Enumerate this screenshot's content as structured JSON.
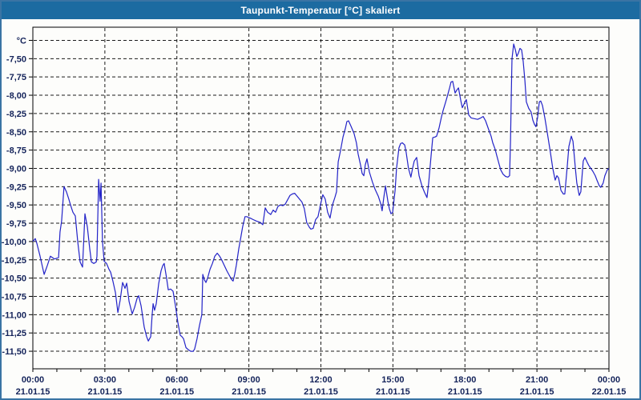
{
  "window": {
    "title": "Taupunkt-Temperatur [°C] skaliert"
  },
  "colors": {
    "titlebar_bg": "#1c6ba1",
    "titlebar_text": "#ffffff",
    "frame_border": "#3a74a4",
    "background": "#fdfdfb",
    "grid": "#1b1b1b",
    "plot_border": "#000000",
    "axis_label": "#14235a",
    "line": "#2323c8"
  },
  "chart_data": {
    "type": "line",
    "title": "Taupunkt-Temperatur [°C] skaliert",
    "grid": "dashed",
    "legend_position": "none",
    "x_axis": {
      "hours_range": [
        0,
        24
      ],
      "major_tick_interval_hours": 3,
      "minor_tick_interval_hours": 1,
      "ticks": [
        {
          "time": "00:00",
          "date": "21.01.15"
        },
        {
          "time": "03:00",
          "date": "21.01.15"
        },
        {
          "time": "06:00",
          "date": "21.01.15"
        },
        {
          "time": "09:00",
          "date": "21.01.15"
        },
        {
          "time": "12:00",
          "date": "21.01.15"
        },
        {
          "time": "15:00",
          "date": "21.01.15"
        },
        {
          "time": "18:00",
          "date": "21.01.15"
        },
        {
          "time": "21:00",
          "date": "21.01.15"
        },
        {
          "time": "00:00",
          "date": "22.01.15"
        }
      ]
    },
    "y_axis": {
      "unit": "°C",
      "range_top": -7.07,
      "range_bottom": -11.74,
      "gridline_values": [
        -7.25,
        -7.5,
        -7.75,
        -8.0,
        -8.25,
        -8.5,
        -8.75,
        -9.0,
        -9.25,
        -9.5,
        -9.75,
        -10.0,
        -10.25,
        -10.5,
        -10.75,
        -11.0,
        -11.25,
        -11.5
      ],
      "ticks": [
        {
          "label": "-7,50",
          "value": -7.5
        },
        {
          "label": "-7,75",
          "value": -7.75
        },
        {
          "label": "-8,00",
          "value": -8.0
        },
        {
          "label": "-8,25",
          "value": -8.25
        },
        {
          "label": "-8,50",
          "value": -8.5
        },
        {
          "label": "-8,75",
          "value": -8.75
        },
        {
          "label": "-9,00",
          "value": -9.0
        },
        {
          "label": "-9,25",
          "value": -9.25
        },
        {
          "label": "-9,50",
          "value": -9.5
        },
        {
          "label": "-9,75",
          "value": -9.75
        },
        {
          "label": "-10,00",
          "value": -10.0
        },
        {
          "label": "-10,25",
          "value": -10.25
        },
        {
          "label": "-10,50",
          "value": -10.5
        },
        {
          "label": "-10,75",
          "value": -10.75
        },
        {
          "label": "-11,00",
          "value": -11.0
        },
        {
          "label": "-11,25",
          "value": -11.25
        },
        {
          "label": "-11,50",
          "value": -11.5
        }
      ]
    },
    "series": [
      {
        "name": "Taupunkt-Temperatur",
        "color": "#2323c8",
        "points": [
          [
            0,
            -10
          ],
          [
            0.1,
            -9.96
          ],
          [
            0.17,
            -10.03
          ],
          [
            0.3,
            -10.2
          ],
          [
            0.47,
            -10.45
          ],
          [
            0.6,
            -10.33
          ],
          [
            0.73,
            -10.2
          ],
          [
            0.9,
            -10.24
          ],
          [
            1.07,
            -10.22
          ],
          [
            1.13,
            -9.87
          ],
          [
            1.2,
            -9.72
          ],
          [
            1.3,
            -9.25
          ],
          [
            1.4,
            -9.32
          ],
          [
            1.5,
            -9.42
          ],
          [
            1.57,
            -9.5
          ],
          [
            1.67,
            -9.6
          ],
          [
            1.77,
            -9.65
          ],
          [
            1.87,
            -10
          ],
          [
            1.97,
            -10.28
          ],
          [
            2.07,
            -10.35
          ],
          [
            2.17,
            -9.62
          ],
          [
            2.27,
            -9.8
          ],
          [
            2.37,
            -10.1
          ],
          [
            2.44,
            -10.28
          ],
          [
            2.54,
            -10.3
          ],
          [
            2.64,
            -10.28
          ],
          [
            2.67,
            -10.2
          ],
          [
            2.74,
            -9.15
          ],
          [
            2.8,
            -9.45
          ],
          [
            2.84,
            -9.2
          ],
          [
            2.9,
            -10
          ],
          [
            2.97,
            -10.27
          ],
          [
            3.07,
            -10.3
          ],
          [
            3.17,
            -10.38
          ],
          [
            3.24,
            -10.42
          ],
          [
            3.34,
            -10.55
          ],
          [
            3.44,
            -10.7
          ],
          [
            3.54,
            -10.97
          ],
          [
            3.64,
            -10.8
          ],
          [
            3.74,
            -10.56
          ],
          [
            3.84,
            -10.64
          ],
          [
            3.91,
            -10.57
          ],
          [
            4.01,
            -10.82
          ],
          [
            4.14,
            -10.99
          ],
          [
            4.24,
            -10.9
          ],
          [
            4.34,
            -10.78
          ],
          [
            4.41,
            -10.74
          ],
          [
            4.51,
            -10.88
          ],
          [
            4.64,
            -11.17
          ],
          [
            4.74,
            -11.3
          ],
          [
            4.81,
            -11.36
          ],
          [
            4.91,
            -11.3
          ],
          [
            4.97,
            -11
          ],
          [
            5.01,
            -10.85
          ],
          [
            5.07,
            -10.94
          ],
          [
            5.14,
            -10.85
          ],
          [
            5.24,
            -10.58
          ],
          [
            5.34,
            -10.4
          ],
          [
            5.41,
            -10.33
          ],
          [
            5.47,
            -10.3
          ],
          [
            5.57,
            -10.5
          ],
          [
            5.64,
            -10.66
          ],
          [
            5.74,
            -10.65
          ],
          [
            5.84,
            -10.68
          ],
          [
            5.94,
            -10.88
          ],
          [
            6.04,
            -11.1
          ],
          [
            6.14,
            -11.28
          ],
          [
            6.21,
            -11.3
          ],
          [
            6.28,
            -11.33
          ],
          [
            6.38,
            -11.45
          ],
          [
            6.48,
            -11.48
          ],
          [
            6.58,
            -11.5
          ],
          [
            6.68,
            -11.5
          ],
          [
            6.74,
            -11.47
          ],
          [
            6.84,
            -11.33
          ],
          [
            6.94,
            -11.15
          ],
          [
            7.04,
            -11
          ],
          [
            7.08,
            -10.45
          ],
          [
            7.14,
            -10.52
          ],
          [
            7.21,
            -10.56
          ],
          [
            7.28,
            -10.5
          ],
          [
            7.38,
            -10.38
          ],
          [
            7.48,
            -10.3
          ],
          [
            7.58,
            -10.2
          ],
          [
            7.68,
            -10.16
          ],
          [
            7.78,
            -10.2
          ],
          [
            7.88,
            -10.26
          ],
          [
            7.98,
            -10.33
          ],
          [
            8.08,
            -10.4
          ],
          [
            8.18,
            -10.46
          ],
          [
            8.28,
            -10.52
          ],
          [
            8.34,
            -10.54
          ],
          [
            8.41,
            -10.45
          ],
          [
            8.48,
            -10.32
          ],
          [
            8.58,
            -10.1
          ],
          [
            8.64,
            -9.99
          ],
          [
            8.74,
            -9.8
          ],
          [
            8.84,
            -9.66
          ],
          [
            8.91,
            -9.66
          ],
          [
            9.05,
            -9.68
          ],
          [
            9.18,
            -9.7
          ],
          [
            9.31,
            -9.72
          ],
          [
            9.48,
            -9.74
          ],
          [
            9.58,
            -9.77
          ],
          [
            9.68,
            -9.54
          ],
          [
            9.78,
            -9.6
          ],
          [
            9.91,
            -9.63
          ],
          [
            10.01,
            -9.57
          ],
          [
            10.11,
            -9.6
          ],
          [
            10.21,
            -9.52
          ],
          [
            10.31,
            -9.5
          ],
          [
            10.41,
            -9.51
          ],
          [
            10.51,
            -9.49
          ],
          [
            10.61,
            -9.43
          ],
          [
            10.71,
            -9.37
          ],
          [
            10.81,
            -9.35
          ],
          [
            10.91,
            -9.34
          ],
          [
            11.01,
            -9.38
          ],
          [
            11.11,
            -9.42
          ],
          [
            11.21,
            -9.46
          ],
          [
            11.31,
            -9.55
          ],
          [
            11.41,
            -9.74
          ],
          [
            11.51,
            -9.8
          ],
          [
            11.58,
            -9.83
          ],
          [
            11.68,
            -9.82
          ],
          [
            11.78,
            -9.7
          ],
          [
            11.88,
            -9.66
          ],
          [
            11.98,
            -9.5
          ],
          [
            12.08,
            -9.36
          ],
          [
            12.18,
            -9.42
          ],
          [
            12.28,
            -9.6
          ],
          [
            12.38,
            -9.68
          ],
          [
            12.48,
            -9.5
          ],
          [
            12.58,
            -9.4
          ],
          [
            12.65,
            -9.32
          ],
          [
            12.72,
            -8.91
          ],
          [
            12.82,
            -8.75
          ],
          [
            12.92,
            -8.57
          ],
          [
            13.02,
            -8.45
          ],
          [
            13.08,
            -8.36
          ],
          [
            13.15,
            -8.35
          ],
          [
            13.25,
            -8.42
          ],
          [
            13.38,
            -8.52
          ],
          [
            13.48,
            -8.65
          ],
          [
            13.55,
            -8.8
          ],
          [
            13.65,
            -8.95
          ],
          [
            13.72,
            -9.07
          ],
          [
            13.79,
            -9.1
          ],
          [
            13.85,
            -8.95
          ],
          [
            13.92,
            -8.87
          ],
          [
            14.02,
            -9.05
          ],
          [
            14.15,
            -9.19
          ],
          [
            14.25,
            -9.28
          ],
          [
            14.39,
            -9.38
          ],
          [
            14.49,
            -9.48
          ],
          [
            14.55,
            -9.58
          ],
          [
            14.62,
            -9.4
          ],
          [
            14.69,
            -9.24
          ],
          [
            14.79,
            -9.45
          ],
          [
            14.85,
            -9.55
          ],
          [
            14.92,
            -9.62
          ],
          [
            14.99,
            -9.6
          ],
          [
            15.09,
            -9.3
          ],
          [
            15.15,
            -9
          ],
          [
            15.25,
            -8.72
          ],
          [
            15.32,
            -8.66
          ],
          [
            15.39,
            -8.65
          ],
          [
            15.49,
            -8.68
          ],
          [
            15.55,
            -8.78
          ],
          [
            15.65,
            -9
          ],
          [
            15.75,
            -9.12
          ],
          [
            15.82,
            -9
          ],
          [
            15.89,
            -8.9
          ],
          [
            15.99,
            -8.85
          ],
          [
            16.09,
            -9.1
          ],
          [
            16.22,
            -9.25
          ],
          [
            16.32,
            -9.33
          ],
          [
            16.42,
            -9.4
          ],
          [
            16.49,
            -9.2
          ],
          [
            16.59,
            -8.83
          ],
          [
            16.66,
            -8.58
          ],
          [
            16.76,
            -8.57
          ],
          [
            16.82,
            -8.56
          ],
          [
            16.92,
            -8.45
          ],
          [
            17.02,
            -8.3
          ],
          [
            17.09,
            -8.21
          ],
          [
            17.19,
            -8.1
          ],
          [
            17.26,
            -8.02
          ],
          [
            17.36,
            -7.9
          ],
          [
            17.42,
            -7.82
          ],
          [
            17.49,
            -7.81
          ],
          [
            17.59,
            -7.97
          ],
          [
            17.66,
            -7.93
          ],
          [
            17.73,
            -7.9
          ],
          [
            17.83,
            -8.08
          ],
          [
            17.89,
            -8.17
          ],
          [
            17.99,
            -8.1
          ],
          [
            18.06,
            -8.06
          ],
          [
            18.16,
            -8.27
          ],
          [
            18.26,
            -8.31
          ],
          [
            18.39,
            -8.32
          ],
          [
            18.53,
            -8.33
          ],
          [
            18.66,
            -8.31
          ],
          [
            18.76,
            -8.29
          ],
          [
            18.86,
            -8.35
          ],
          [
            18.99,
            -8.47
          ],
          [
            19.09,
            -8.56
          ],
          [
            19.16,
            -8.65
          ],
          [
            19.26,
            -8.74
          ],
          [
            19.33,
            -8.83
          ],
          [
            19.43,
            -8.95
          ],
          [
            19.49,
            -9.02
          ],
          [
            19.59,
            -9.08
          ],
          [
            19.69,
            -9.11
          ],
          [
            19.79,
            -9.12
          ],
          [
            19.86,
            -9.1
          ],
          [
            19.9,
            -8.6
          ],
          [
            19.93,
            -8
          ],
          [
            19.96,
            -7.5
          ],
          [
            20.03,
            -7.3
          ],
          [
            20.1,
            -7.38
          ],
          [
            20.16,
            -7.47
          ],
          [
            20.23,
            -7.42
          ],
          [
            20.29,
            -7.36
          ],
          [
            20.36,
            -7.38
          ],
          [
            20.43,
            -7.54
          ],
          [
            20.5,
            -7.8
          ],
          [
            20.56,
            -8.09
          ],
          [
            20.66,
            -8.18
          ],
          [
            20.76,
            -8.23
          ],
          [
            20.83,
            -8.34
          ],
          [
            20.9,
            -8.4
          ],
          [
            20.96,
            -8.43
          ],
          [
            21.03,
            -8.3
          ],
          [
            21.1,
            -8.09
          ],
          [
            21.16,
            -8.08
          ],
          [
            21.23,
            -8.14
          ],
          [
            21.33,
            -8.31
          ],
          [
            21.43,
            -8.51
          ],
          [
            21.56,
            -8.78
          ],
          [
            21.66,
            -9
          ],
          [
            21.76,
            -9.16
          ],
          [
            21.83,
            -9.1
          ],
          [
            21.9,
            -9.13
          ],
          [
            22,
            -9.3
          ],
          [
            22.1,
            -9.35
          ],
          [
            22.16,
            -9.35
          ],
          [
            22.26,
            -8.98
          ],
          [
            22.33,
            -8.7
          ],
          [
            22.43,
            -8.56
          ],
          [
            22.5,
            -8.63
          ],
          [
            22.6,
            -9
          ],
          [
            22.66,
            -9.2
          ],
          [
            22.76,
            -9.37
          ],
          [
            22.83,
            -9.32
          ],
          [
            22.93,
            -8.9
          ],
          [
            23,
            -8.85
          ],
          [
            23.1,
            -8.92
          ],
          [
            23.16,
            -8.96
          ],
          [
            23.33,
            -9.04
          ],
          [
            23.43,
            -9.1
          ],
          [
            23.5,
            -9.16
          ],
          [
            23.6,
            -9.24
          ],
          [
            23.66,
            -9.26
          ],
          [
            23.76,
            -9.2
          ],
          [
            23.83,
            -9.1
          ],
          [
            23.93,
            -9.02
          ],
          [
            24,
            -9
          ]
        ]
      }
    ]
  }
}
